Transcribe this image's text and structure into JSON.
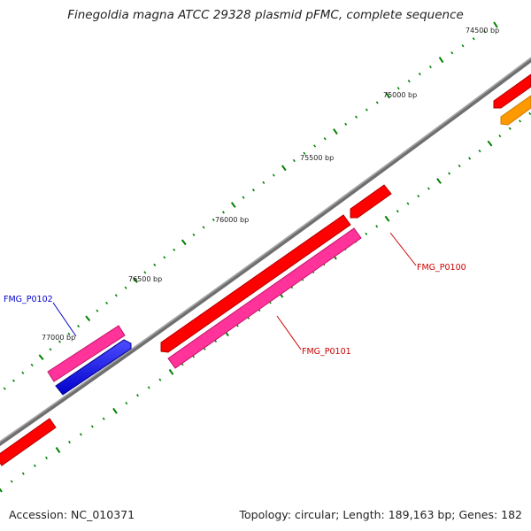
{
  "title": "Finegoldia magna ATCC 29328 plasmid pFMC, complete sequence",
  "footer": {
    "accession": "Accession: NC_010371",
    "summary": "Topology: circular; Length: 189,163 bp; Genes: 182"
  },
  "ticks": [
    {
      "label": "74500 bp"
    },
    {
      "label": "75000 bp"
    },
    {
      "label": "75500 bp"
    },
    {
      "label": "76000 bp"
    },
    {
      "label": "76500 bp"
    },
    {
      "label": "77000 bp"
    }
  ],
  "gene_labels": [
    {
      "id": "FMG_P0100",
      "label": "FMG_P0100",
      "color": "#cc0000"
    },
    {
      "id": "FMG_P0101",
      "label": "FMG_P0101",
      "color": "#cc0000"
    },
    {
      "id": "FMG_P0102",
      "label": "FMG_P0102",
      "color": "#0000cc"
    }
  ],
  "colors": {
    "backbone": "#808080",
    "tick_mark": "#008000",
    "gene_red": "#ff0000",
    "gene_pink": "#ff3399",
    "gene_blue": "#0000ff",
    "gene_orange": "#ff9900"
  }
}
